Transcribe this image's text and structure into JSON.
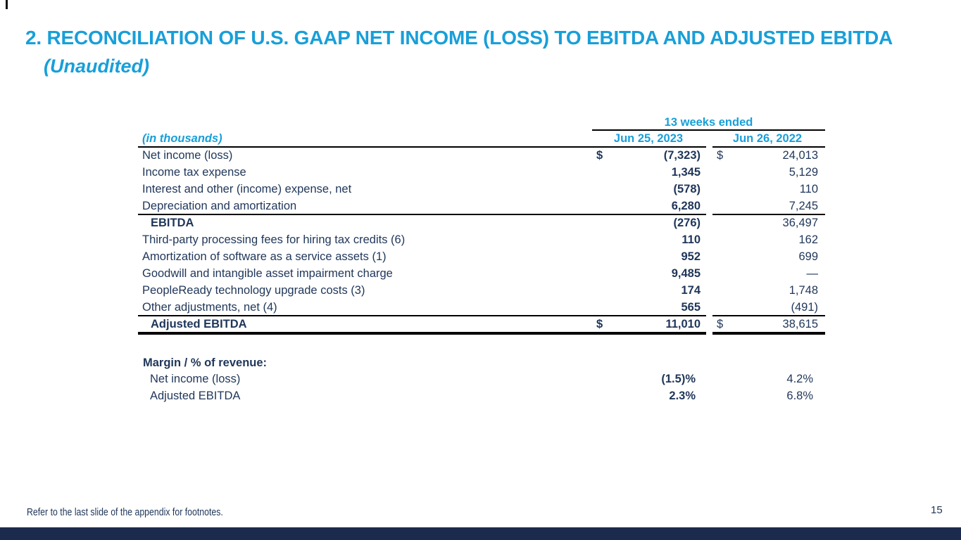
{
  "title": {
    "line1": "2. RECONCILIATION OF U.S. GAAP NET INCOME (LOSS) TO EBITDA AND ADJUSTED EBITDA",
    "line2": "(Unaudited)"
  },
  "colors": {
    "accent_cyan": "#189FD9",
    "text_navy": "#1F3659",
    "bottom_bar_navy": "#1C2B4D",
    "rule_black": "#000000"
  },
  "table": {
    "period_header": "13 weeks ended",
    "units_label": "(in thousands)",
    "columns": [
      "Jun 25, 2023",
      "Jun 26, 2022"
    ],
    "rows": [
      {
        "label": "Net income (loss)",
        "cur1": "$",
        "v2023": "(7,323)",
        "cur2": "$",
        "v2022": "24,013"
      },
      {
        "label": "Income tax expense",
        "v2023": "1,345",
        "v2022": "5,129"
      },
      {
        "label": "Interest and other (income) expense, net",
        "v2023": "(578)",
        "v2022": "110"
      },
      {
        "label": "Depreciation and amortization",
        "v2023": "6,280",
        "v2022": "7,245"
      },
      {
        "label": "EBITDA",
        "v2023": "(276)",
        "v2022": "36,497"
      },
      {
        "label": "Third-party processing fees for hiring tax credits (6)",
        "v2023": "110",
        "v2022": "162"
      },
      {
        "label": "Amortization of software as a service assets (1)",
        "v2023": "952",
        "v2022": "699"
      },
      {
        "label": "Goodwill and intangible asset impairment charge",
        "v2023": "9,485",
        "v2022": "—"
      },
      {
        "label": "PeopleReady technology upgrade costs (3)",
        "v2023": "174",
        "v2022": "1,748"
      },
      {
        "label": "Other adjustments, net (4)",
        "v2023": "565",
        "v2022": "(491)"
      },
      {
        "label": "Adjusted EBITDA",
        "cur1": "$",
        "v2023": "11,010",
        "cur2": "$",
        "v2022": "38,615"
      }
    ]
  },
  "margin_section": {
    "title": "Margin / % of revenue:",
    "rows": [
      {
        "label": "Net income (loss)",
        "v2023": "(1.5)%",
        "v2022": "4.2%"
      },
      {
        "label": "Adjusted EBITDA",
        "v2023": "2.3%",
        "v2022": "6.8%"
      }
    ]
  },
  "footer": {
    "note": "Refer to the last slide of the appendix for footnotes.",
    "page_number": "15"
  }
}
